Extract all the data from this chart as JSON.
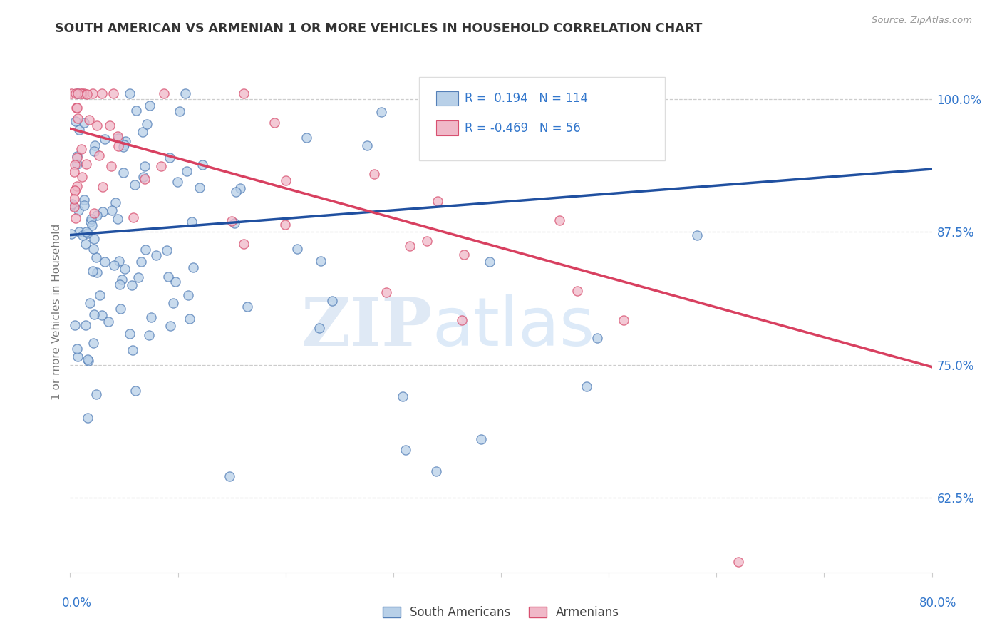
{
  "title": "SOUTH AMERICAN VS ARMENIAN 1 OR MORE VEHICLES IN HOUSEHOLD CORRELATION CHART",
  "source": "Source: ZipAtlas.com",
  "ylabel": "1 or more Vehicles in Household",
  "ytick_labels": [
    "62.5%",
    "75.0%",
    "87.5%",
    "100.0%"
  ],
  "ytick_values": [
    0.625,
    0.75,
    0.875,
    1.0
  ],
  "xlim": [
    0.0,
    0.8
  ],
  "ylim": [
    0.555,
    1.045
  ],
  "blue_R": 0.194,
  "blue_N": 114,
  "pink_R": -0.469,
  "pink_N": 56,
  "blue_fill_color": "#b8d0e8",
  "blue_edge_color": "#5580b8",
  "pink_fill_color": "#f0b8c8",
  "pink_edge_color": "#d85070",
  "blue_line_color": "#2050a0",
  "pink_line_color": "#d84060",
  "legend_label_blue": "South Americans",
  "legend_label_pink": "Armenians",
  "watermark_zip": "ZIP",
  "watermark_atlas": "atlas",
  "blue_line_y0": 0.872,
  "blue_line_y1": 0.934,
  "pink_line_y0": 0.972,
  "pink_line_y1": 0.748
}
